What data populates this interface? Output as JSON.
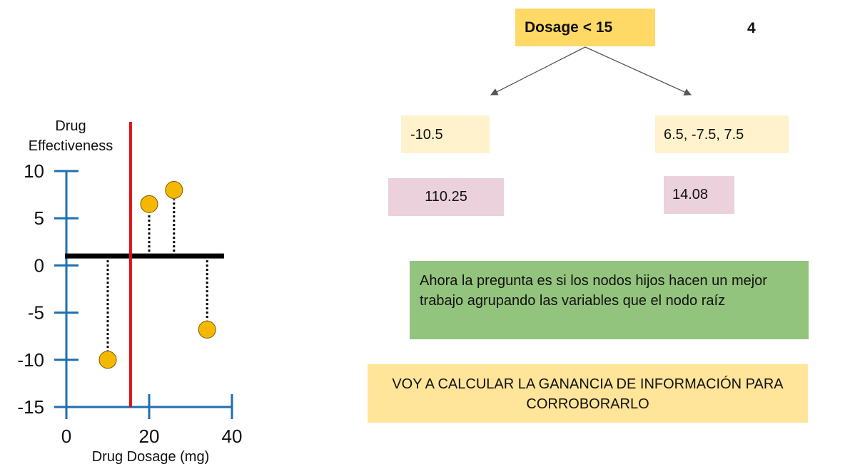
{
  "chart_data": {
    "type": "scatter",
    "ylabel": "Drug Effectiveness",
    "xlabel": "Drug Dosage (mg)",
    "x_ticks": [
      0,
      20,
      40
    ],
    "y_ticks": [
      10,
      5,
      0,
      -5,
      -10,
      -15
    ],
    "xlim": [
      0,
      40
    ],
    "ylim": [
      -15,
      10
    ],
    "points": [
      {
        "x": 10,
        "y": -10
      },
      {
        "x": 20,
        "y": 6.5
      },
      {
        "x": 26,
        "y": 8
      },
      {
        "x": 34,
        "y": -6.8
      }
    ],
    "mean_line_y": 1,
    "split_x": 15.5,
    "colors": {
      "axis": "#1F6FB0",
      "split": "#E01010",
      "mean": "#000000",
      "point": "#F5B800",
      "point_stroke": "#7A5A00"
    }
  },
  "tree": {
    "root_label": "Dosage < 15",
    "root_count": "4",
    "left_values": "-10.5",
    "right_values": "6.5, -7.5, 7.5",
    "left_score": "110.25",
    "right_score": "14.08"
  },
  "notes": {
    "question": "Ahora la pregunta es si los nodos hijos hacen un mejor trabajo agrupando las variables que el nodo raíz",
    "plan": "VOY A CALCULAR LA GANANCIA DE INFORMACIÓN PARA CORROBORARLO"
  },
  "colors": {
    "root_fill": "#FFD966",
    "leaf_fill": "#FFF2CC",
    "score_fill": "#EAD1DC",
    "note_green": "#93C47D",
    "note_yellow": "#FFE599",
    "arrow": "#555555"
  }
}
